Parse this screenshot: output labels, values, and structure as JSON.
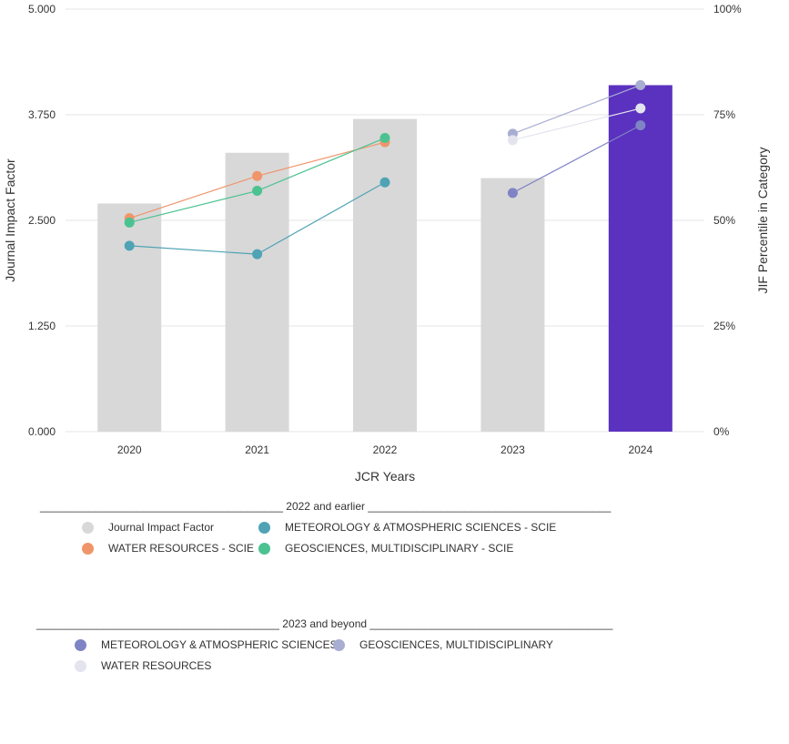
{
  "chart_data": {
    "type": "bar",
    "categories": [
      "2020",
      "2021",
      "2022",
      "2023",
      "2024"
    ],
    "xlabel": "JCR Years",
    "ylabel": "Journal Impact Factor",
    "y2label": "JIF Percentile in Category",
    "ylim": [
      0,
      5
    ],
    "y2lim": [
      0,
      100
    ],
    "y_ticks": [
      "0.000",
      "1.250",
      "2.500",
      "3.750",
      "5.000"
    ],
    "y2_ticks": [
      "0%",
      "25%",
      "50%",
      "75%",
      "100%"
    ],
    "grid": true,
    "bars": {
      "name": "Journal Impact Factor",
      "values": [
        2.7,
        3.3,
        3.7,
        3.0,
        4.1
      ],
      "colors": [
        "#d8d8d8",
        "#d8d8d8",
        "#d8d8d8",
        "#d8d8d8",
        "#5b31bf"
      ]
    },
    "series": [
      {
        "name": "WATER RESOURCES - SCIE",
        "group": "2022 and earlier",
        "color": "#f0956a",
        "points": [
          {
            "x": "2020",
            "y": 50.5
          },
          {
            "x": "2021",
            "y": 60.5
          },
          {
            "x": "2022",
            "y": 68.5
          }
        ]
      },
      {
        "name": "METEOROLOGY & ATMOSPHERIC SCIENCES - SCIE",
        "group": "2022 and earlier",
        "color": "#4fa3b5",
        "points": [
          {
            "x": "2020",
            "y": 44
          },
          {
            "x": "2021",
            "y": 42
          },
          {
            "x": "2022",
            "y": 59
          }
        ]
      },
      {
        "name": "GEOSCIENCES, MULTIDISCIPLINARY - SCIE",
        "group": "2022 and earlier",
        "color": "#4cc291",
        "points": [
          {
            "x": "2020",
            "y": 49.5
          },
          {
            "x": "2021",
            "y": 57
          },
          {
            "x": "2022",
            "y": 69.5
          }
        ]
      },
      {
        "name": "METEOROLOGY & ATMOSPHERIC SCIENCES",
        "group": "2023 and beyond",
        "color": "#7f84c4",
        "points": [
          {
            "x": "2023",
            "y": 56.5
          },
          {
            "x": "2024",
            "y": 72.5
          }
        ]
      },
      {
        "name": "GEOSCIENCES, MULTIDISCIPLINARY",
        "group": "2023 and beyond",
        "color": "#a8aed2",
        "points": [
          {
            "x": "2023",
            "y": 70.5
          },
          {
            "x": "2024",
            "y": 82
          }
        ]
      },
      {
        "name": "WATER RESOURCES",
        "group": "2023 and beyond",
        "color": "#e4e4ee",
        "points": [
          {
            "x": "2023",
            "y": 69
          },
          {
            "x": "2024",
            "y": 76.5
          }
        ]
      }
    ]
  },
  "legend": {
    "group1": {
      "heading": "________________________________________ 2022 and earlier ________________________________________",
      "items": [
        {
          "label": "Journal Impact Factor",
          "color": "#d8d8d8"
        },
        {
          "label": "METEOROLOGY & ATMOSPHERIC SCIENCES - SCIE",
          "color": "#4fa3b5"
        },
        {
          "label": "WATER RESOURCES - SCIE",
          "color": "#f0956a"
        },
        {
          "label": "GEOSCIENCES, MULTIDISCIPLINARY - SCIE",
          "color": "#4cc291"
        }
      ]
    },
    "group2": {
      "heading": "________________________________________ 2023 and beyond ________________________________________",
      "items": [
        {
          "label": "METEOROLOGY & ATMOSPHERIC SCIENCES",
          "color": "#7f84c4"
        },
        {
          "label": "GEOSCIENCES, MULTIDISCIPLINARY",
          "color": "#a8aed2"
        },
        {
          "label": "WATER RESOURCES",
          "color": "#e4e4ee"
        }
      ]
    }
  }
}
